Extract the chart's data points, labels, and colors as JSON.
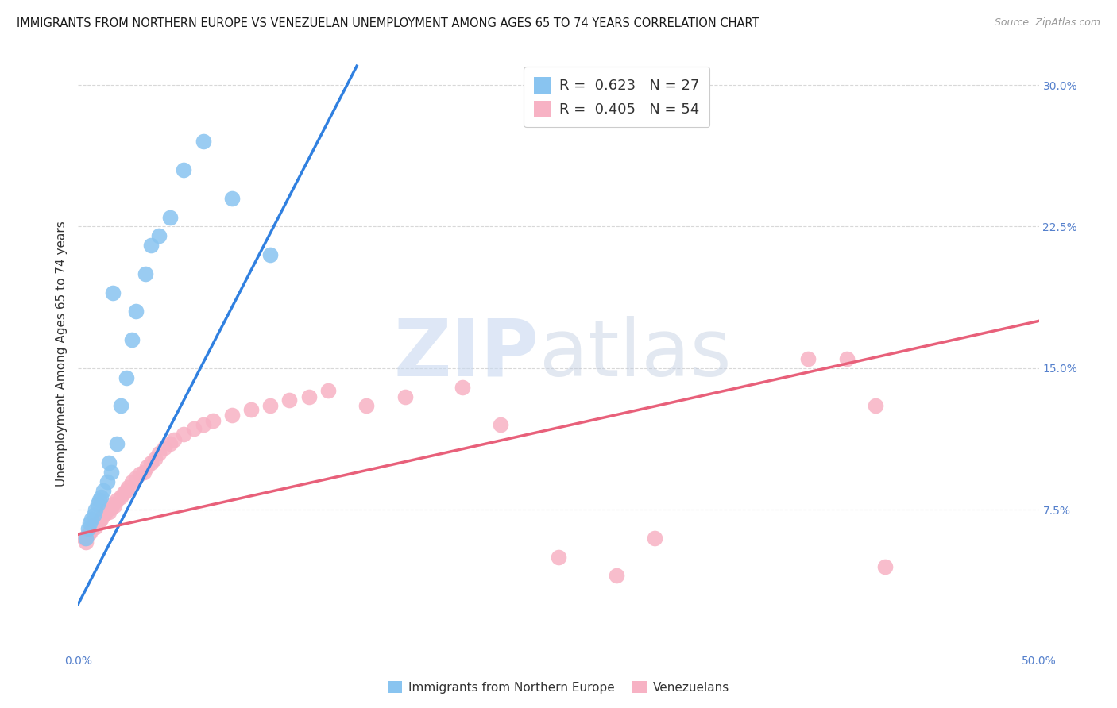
{
  "title": "IMMIGRANTS FROM NORTHERN EUROPE VS VENEZUELAN UNEMPLOYMENT AMONG AGES 65 TO 74 YEARS CORRELATION CHART",
  "source": "Source: ZipAtlas.com",
  "ylabel": "Unemployment Among Ages 65 to 74 years",
  "xlim": [
    0.0,
    0.5
  ],
  "ylim": [
    0.0,
    0.315
  ],
  "yticks_right": [
    0.075,
    0.15,
    0.225,
    0.3
  ],
  "yticklabels_right": [
    "7.5%",
    "15.0%",
    "22.5%",
    "30.0%"
  ],
  "blue_R": 0.623,
  "blue_N": 27,
  "pink_R": 0.405,
  "pink_N": 54,
  "blue_color": "#89c4f0",
  "pink_color": "#f7b2c4",
  "blue_line_color": "#3080e0",
  "pink_line_color": "#e8607a",
  "watermark_zip": "ZIP",
  "watermark_atlas": "atlas",
  "blue_scatter_x": [
    0.004,
    0.005,
    0.006,
    0.007,
    0.008,
    0.009,
    0.01,
    0.011,
    0.012,
    0.013,
    0.015,
    0.016,
    0.017,
    0.018,
    0.02,
    0.022,
    0.025,
    0.028,
    0.03,
    0.035,
    0.038,
    0.042,
    0.048,
    0.055,
    0.065,
    0.08,
    0.1
  ],
  "blue_scatter_y": [
    0.06,
    0.065,
    0.068,
    0.07,
    0.072,
    0.075,
    0.078,
    0.08,
    0.082,
    0.085,
    0.09,
    0.1,
    0.095,
    0.19,
    0.11,
    0.13,
    0.145,
    0.165,
    0.18,
    0.2,
    0.215,
    0.22,
    0.23,
    0.255,
    0.27,
    0.24,
    0.21
  ],
  "pink_scatter_x": [
    0.003,
    0.004,
    0.005,
    0.006,
    0.007,
    0.008,
    0.009,
    0.01,
    0.011,
    0.012,
    0.013,
    0.014,
    0.015,
    0.016,
    0.017,
    0.018,
    0.019,
    0.02,
    0.022,
    0.024,
    0.025,
    0.026,
    0.028,
    0.03,
    0.032,
    0.034,
    0.036,
    0.038,
    0.04,
    0.042,
    0.045,
    0.048,
    0.05,
    0.055,
    0.06,
    0.065,
    0.07,
    0.08,
    0.09,
    0.1,
    0.11,
    0.12,
    0.13,
    0.15,
    0.17,
    0.2,
    0.22,
    0.25,
    0.28,
    0.3,
    0.38,
    0.4,
    0.415,
    0.42
  ],
  "pink_scatter_y": [
    0.06,
    0.058,
    0.062,
    0.063,
    0.065,
    0.067,
    0.066,
    0.068,
    0.069,
    0.07,
    0.072,
    0.073,
    0.075,
    0.074,
    0.076,
    0.078,
    0.077,
    0.08,
    0.082,
    0.084,
    0.085,
    0.087,
    0.09,
    0.092,
    0.094,
    0.095,
    0.098,
    0.1,
    0.102,
    0.105,
    0.108,
    0.11,
    0.112,
    0.115,
    0.118,
    0.12,
    0.122,
    0.125,
    0.128,
    0.13,
    0.133,
    0.135,
    0.138,
    0.13,
    0.135,
    0.14,
    0.12,
    0.05,
    0.04,
    0.06,
    0.155,
    0.155,
    0.13,
    0.045
  ],
  "blue_line_x": [
    0.0,
    0.145
  ],
  "blue_line_y": [
    0.025,
    0.31
  ],
  "pink_line_x": [
    0.0,
    0.5
  ],
  "pink_line_y": [
    0.062,
    0.175
  ],
  "grid_color": "#d8d8d8",
  "background_color": "#ffffff",
  "title_fontsize": 10.5,
  "axis_label_fontsize": 11,
  "tick_fontsize": 10,
  "legend_fontsize": 13
}
